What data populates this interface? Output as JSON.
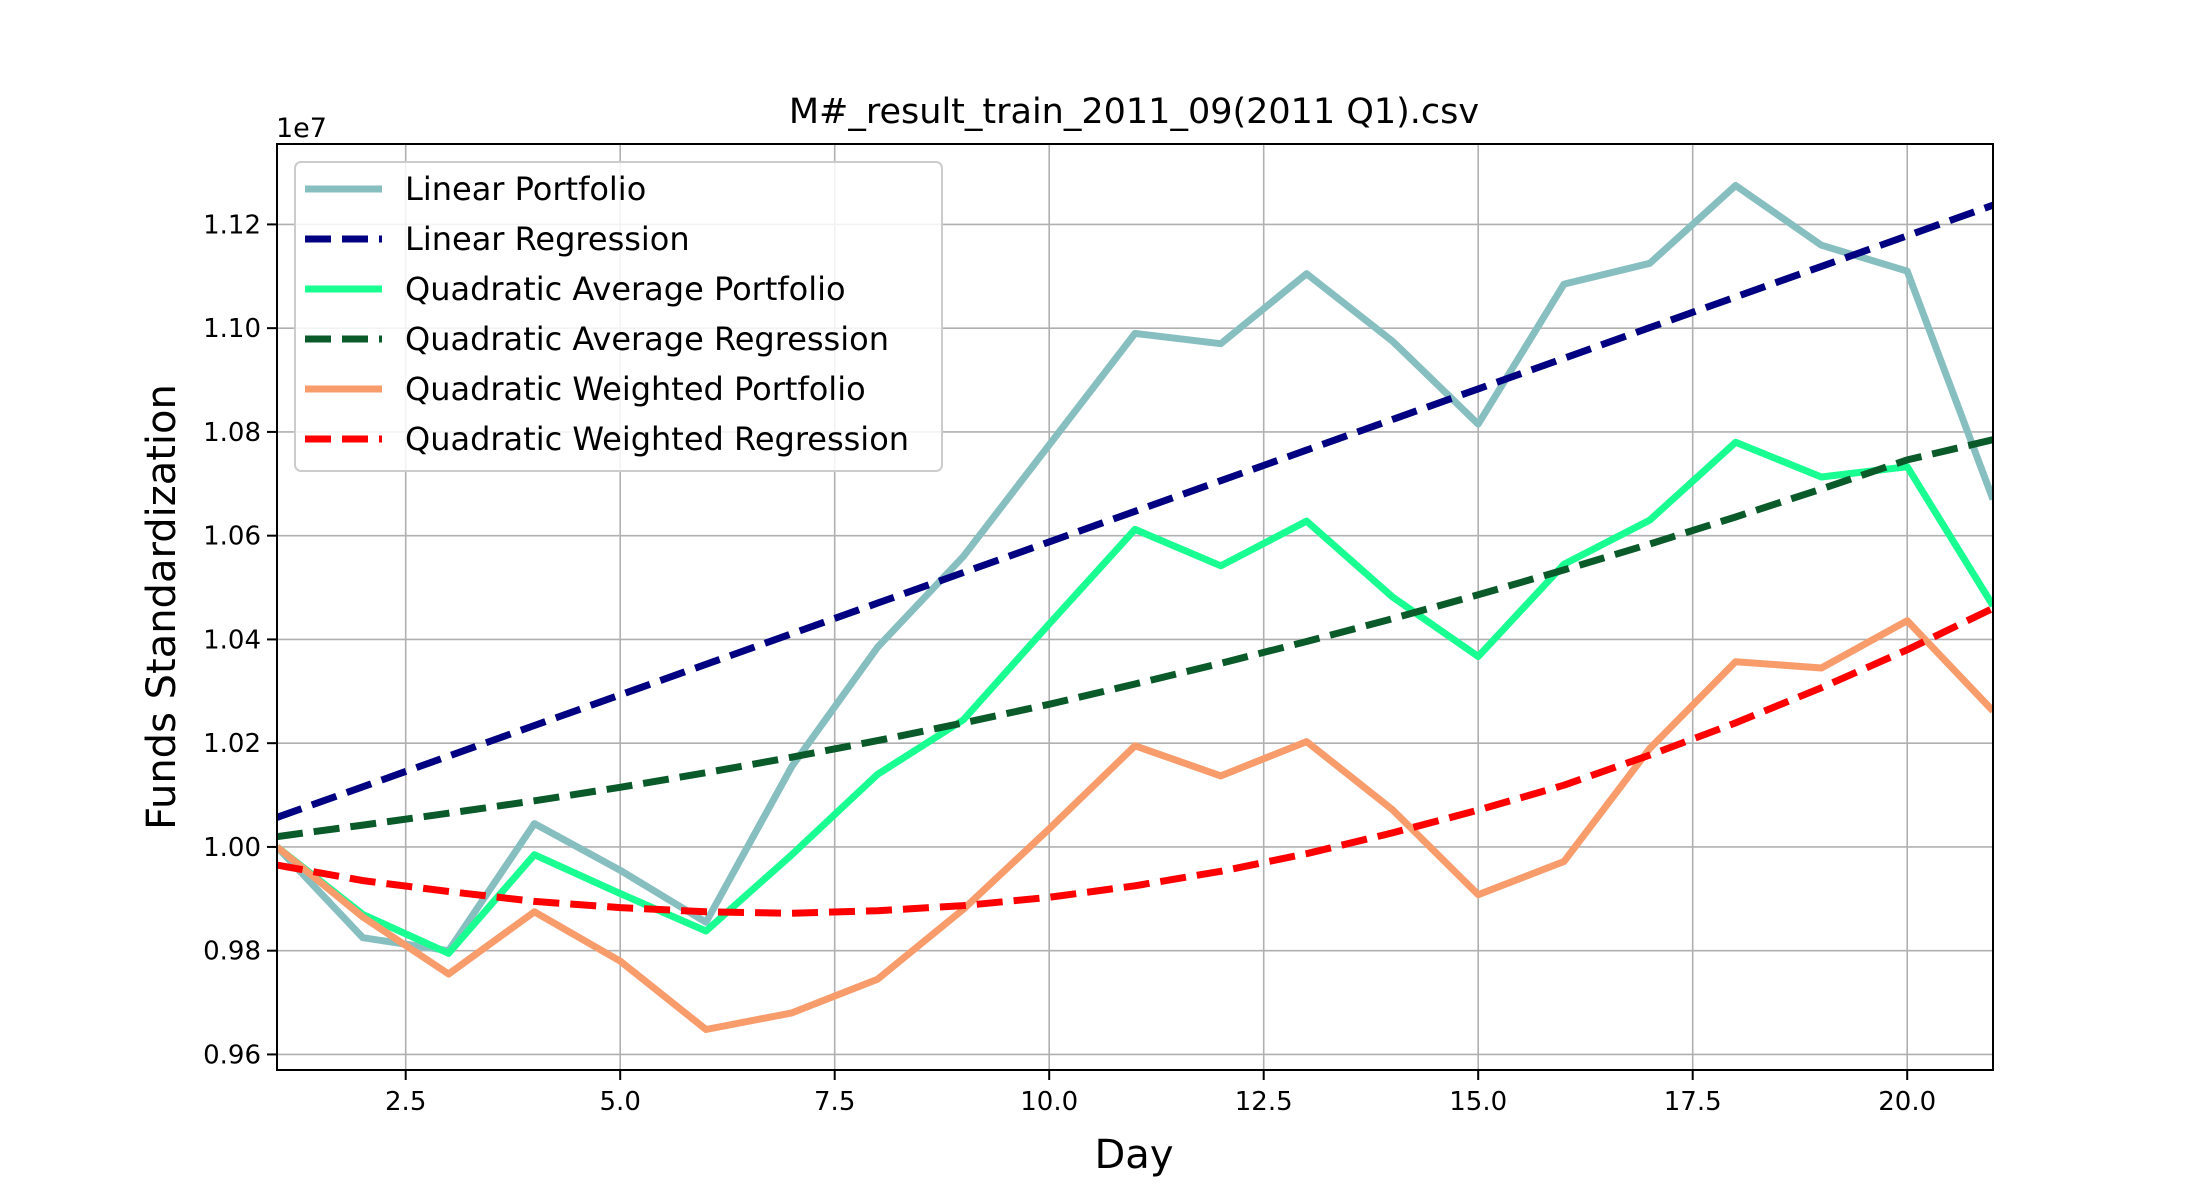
{
  "chart_data": {
    "type": "line",
    "title": "M#_result_train_2011_09(2011 Q1).csv",
    "xlabel": "Day",
    "ylabel": "Funds Standardization",
    "y_offset_label": "1e7",
    "xlim": [
      1,
      21
    ],
    "ylim": [
      0.957,
      1.1355
    ],
    "grid": true,
    "legend_position": "upper-left",
    "xticks": [
      2.5,
      5.0,
      7.5,
      10.0,
      12.5,
      15.0,
      17.5,
      20.0
    ],
    "xtick_labels": [
      "2.5",
      "5.0",
      "7.5",
      "10.0",
      "12.5",
      "15.0",
      "17.5",
      "20.0"
    ],
    "yticks": [
      0.96,
      0.98,
      1.0,
      1.02,
      1.04,
      1.06,
      1.08,
      1.1,
      1.12
    ],
    "ytick_labels": [
      "0.96",
      "0.98",
      "1.00",
      "1.02",
      "1.04",
      "1.06",
      "1.08",
      "1.10",
      "1.12"
    ],
    "x": [
      1,
      2,
      3,
      4,
      5,
      6,
      7,
      8,
      9,
      10,
      11,
      12,
      13,
      14,
      15,
      16,
      17,
      18,
      19,
      20,
      21
    ],
    "series": [
      {
        "name": "Linear Portfolio",
        "color": "#87bfc1",
        "dash": "solid",
        "values": [
          1.0,
          0.9825,
          0.98,
          1.0045,
          0.9955,
          0.9855,
          1.0155,
          1.0385,
          1.056,
          1.0775,
          1.099,
          1.097,
          1.1105,
          1.0975,
          1.0815,
          1.1085,
          1.1125,
          1.1275,
          1.116,
          1.111,
          1.067
        ]
      },
      {
        "name": "Linear Regression",
        "color": "#000080",
        "dash": "dashed",
        "values": [
          1.0057,
          1.0116,
          1.0175,
          1.0234,
          1.0293,
          1.0352,
          1.0411,
          1.047,
          1.0529,
          1.0588,
          1.0647,
          1.0706,
          1.0765,
          1.0824,
          1.0883,
          1.0942,
          1.1001,
          1.106,
          1.1119,
          1.1178,
          1.1237
        ]
      },
      {
        "name": "Quadratic Average Portfolio",
        "color": "#19ff91",
        "dash": "solid",
        "values": [
          1.0,
          0.987,
          0.9795,
          0.9985,
          0.991,
          0.9838,
          0.9985,
          1.014,
          1.0245,
          1.043,
          1.0612,
          1.0542,
          1.0628,
          1.0482,
          1.0367,
          1.0545,
          1.063,
          1.078,
          1.0713,
          1.0733,
          1.0465
        ]
      },
      {
        "name": "Quadratic Average Regression",
        "color": "#0a5a2a",
        "dash": "dashed",
        "values": [
          1.002,
          1.0042,
          1.0065,
          1.0089,
          1.0115,
          1.0143,
          1.0173,
          1.0205,
          1.0239,
          1.0275,
          1.0314,
          1.0354,
          1.0396,
          1.044,
          1.0486,
          1.0534,
          1.0584,
          1.0636,
          1.069,
          1.0746,
          1.0785
        ]
      },
      {
        "name": "Quadratic Weighted Portfolio",
        "color": "#f89c6c",
        "dash": "solid",
        "values": [
          1.0,
          0.9865,
          0.9755,
          0.9875,
          0.978,
          0.9648,
          0.968,
          0.9745,
          0.988,
          1.0035,
          1.0195,
          1.0137,
          1.0203,
          1.0072,
          0.9908,
          0.9972,
          1.019,
          1.0357,
          1.0345,
          1.0436,
          1.0262
        ]
      },
      {
        "name": "Quadratic Weighted Regression",
        "color": "#ff0000",
        "dash": "dashed",
        "values": [
          0.9965,
          0.9935,
          0.9914,
          0.9895,
          0.9883,
          0.9875,
          0.9872,
          0.9877,
          0.9887,
          0.9903,
          0.9925,
          0.9953,
          0.9987,
          1.0027,
          1.0071,
          1.0119,
          1.0177,
          1.0239,
          1.0307,
          1.038,
          1.046
        ]
      }
    ]
  }
}
